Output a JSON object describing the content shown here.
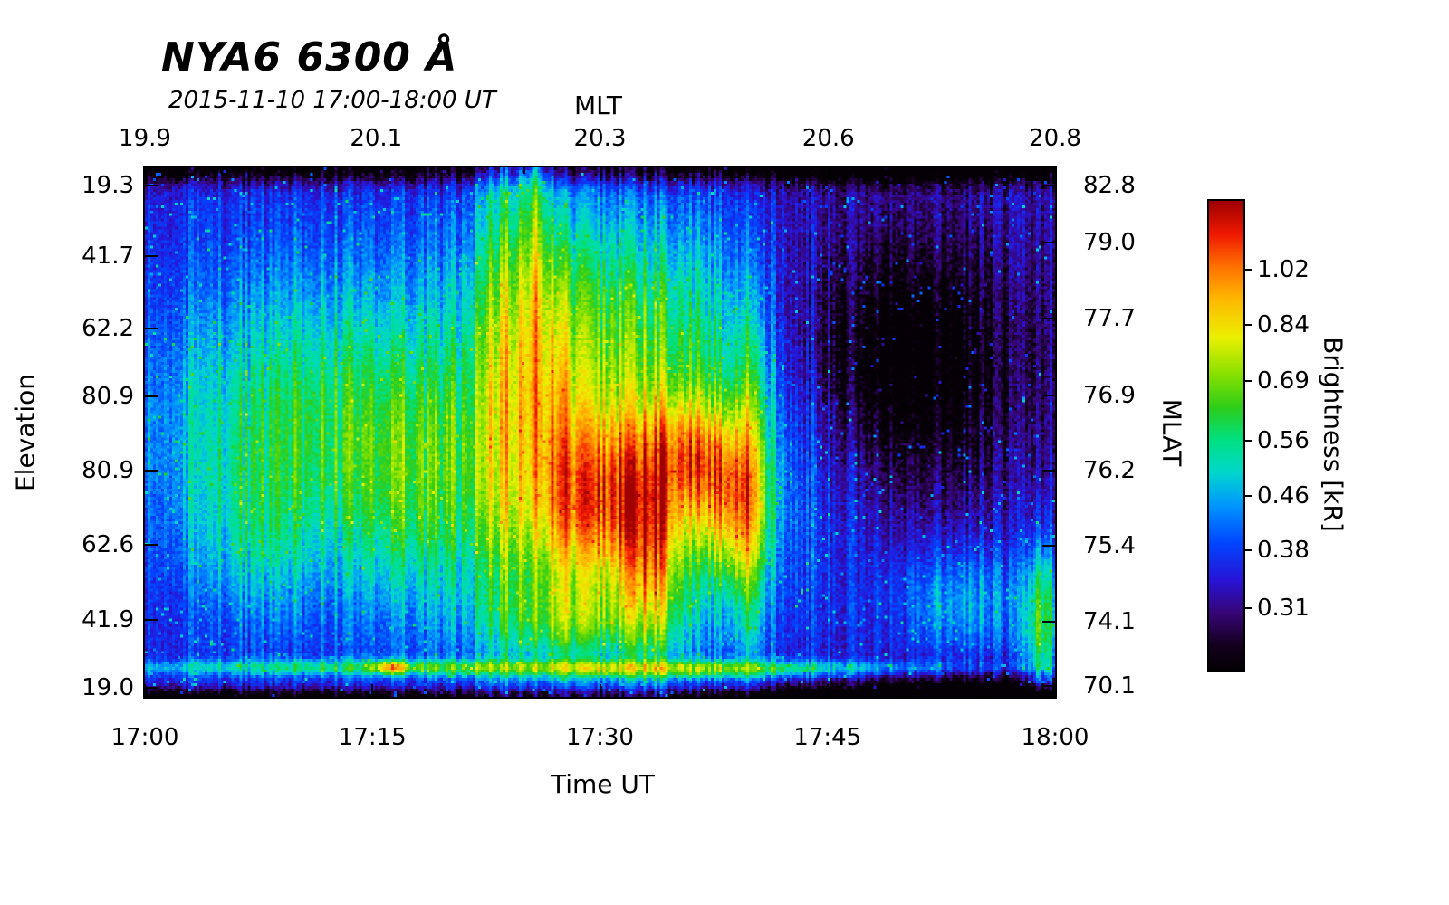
{
  "title": "NYA6 6300 Å",
  "subtitle": "2015-11-10 17:00-18:00 UT",
  "axes": {
    "top": {
      "label": "MLT",
      "ticks": [
        {
          "value": "19.9",
          "pos": 0.0
        },
        {
          "value": "20.1",
          "pos": 0.254
        },
        {
          "value": "20.3",
          "pos": 0.5
        },
        {
          "value": "20.6",
          "pos": 0.751
        },
        {
          "value": "20.8",
          "pos": 1.0
        }
      ]
    },
    "bottom": {
      "label": "Time UT",
      "ticks": [
        {
          "value": "17:00",
          "pos": 0.0
        },
        {
          "value": "17:15",
          "pos": 0.25
        },
        {
          "value": "17:30",
          "pos": 0.5
        },
        {
          "value": "17:45",
          "pos": 0.75
        },
        {
          "value": "18:00",
          "pos": 1.0
        }
      ]
    },
    "left": {
      "label": "Elevation",
      "ticks": [
        {
          "value": "19.3",
          "pos": 0.034
        },
        {
          "value": "41.7",
          "pos": 0.168
        },
        {
          "value": "62.2",
          "pos": 0.304
        },
        {
          "value": "80.9",
          "pos": 0.433
        },
        {
          "value": "80.9",
          "pos": 0.573
        },
        {
          "value": "62.6",
          "pos": 0.713
        },
        {
          "value": "41.9",
          "pos": 0.855
        },
        {
          "value": "19.0",
          "pos": 0.983
        }
      ]
    },
    "right": {
      "label": "MLAT",
      "ticks": [
        {
          "value": "82.8",
          "pos": 0.034
        },
        {
          "value": "79.0",
          "pos": 0.142
        },
        {
          "value": "77.7",
          "pos": 0.286
        },
        {
          "value": "76.9",
          "pos": 0.431
        },
        {
          "value": "76.2",
          "pos": 0.573
        },
        {
          "value": "75.4",
          "pos": 0.715
        },
        {
          "value": "74.1",
          "pos": 0.858
        },
        {
          "value": "70.1",
          "pos": 0.979
        }
      ]
    }
  },
  "colorbar": {
    "label": "Brightness [kR]",
    "ticks": [
      "1.02",
      "0.84",
      "0.69",
      "0.56",
      "0.46",
      "0.38",
      "0.31"
    ]
  },
  "chart_data": {
    "type": "heatmap",
    "title": "NYA6 6300 Å",
    "subtitle": "2015-11-10 17:00-18:00 UT",
    "xlabel": "Time UT",
    "x_range": [
      "17:00",
      "18:00"
    ],
    "top_axis_label": "MLT",
    "top_axis_ticks": [
      19.9,
      20.1,
      20.3,
      20.6,
      20.8
    ],
    "ylabel_left": "Elevation",
    "left_ticks": [
      19.3,
      41.7,
      62.2,
      80.9,
      80.9,
      62.6,
      41.9,
      19.0
    ],
    "ylabel_right": "MLAT",
    "right_ticks": [
      82.8,
      79.0,
      77.7,
      76.9,
      76.2,
      75.4,
      74.1,
      70.1
    ],
    "value_label": "Brightness [kR]",
    "value_ticks": [
      1.02,
      0.84,
      0.69,
      0.56,
      0.46,
      0.38,
      0.31
    ],
    "value_scale": "log",
    "value_range": [
      0.25,
      1.3
    ],
    "background_level": 0.345,
    "column_noise": 0.4,
    "pixel_noise": 0.05,
    "colormap_stops": [
      [
        0.0,
        5,
        0,
        5
      ],
      [
        0.05,
        20,
        0,
        30
      ],
      [
        0.12,
        55,
        5,
        120
      ],
      [
        0.19,
        40,
        20,
        215
      ],
      [
        0.27,
        0,
        70,
        255
      ],
      [
        0.35,
        0,
        150,
        255
      ],
      [
        0.42,
        0,
        215,
        205
      ],
      [
        0.49,
        0,
        225,
        130
      ],
      [
        0.56,
        45,
        205,
        25
      ],
      [
        0.63,
        135,
        225,
        0
      ],
      [
        0.71,
        235,
        240,
        0
      ],
      [
        0.79,
        255,
        185,
        0
      ],
      [
        0.86,
        255,
        115,
        0
      ],
      [
        0.93,
        240,
        25,
        0
      ],
      [
        1.0,
        160,
        0,
        0
      ]
    ],
    "features": [
      {
        "t": 0.19,
        "y": 0.5,
        "st": 0.11,
        "sy": 0.17,
        "a": 0.16
      },
      {
        "t": 0.22,
        "y": 0.5,
        "st": 0.17,
        "sy": 0.26,
        "a": 0.1
      },
      {
        "t": 0.3,
        "y": 0.62,
        "st": 0.05,
        "sy": 0.14,
        "a": 0.1
      },
      {
        "t": 0.12,
        "y": 0.7,
        "st": 0.04,
        "sy": 0.1,
        "a": 0.07
      },
      {
        "t": 0.395,
        "y": 0.4,
        "st": 0.018,
        "sy": 0.3,
        "a": 0.3
      },
      {
        "t": 0.43,
        "y": 0.28,
        "st": 0.01,
        "sy": 0.26,
        "a": 0.3
      },
      {
        "t": 0.455,
        "y": 0.5,
        "st": 0.012,
        "sy": 0.25,
        "a": 0.22
      },
      {
        "t": 0.54,
        "y": 0.55,
        "st": 0.11,
        "sy": 0.2,
        "a": 0.28
      },
      {
        "t": 0.52,
        "y": 0.25,
        "st": 0.09,
        "sy": 0.13,
        "a": 0.12
      },
      {
        "t": 0.52,
        "y": 0.5,
        "st": 0.17,
        "sy": 0.3,
        "a": 0.08
      },
      {
        "t": 0.505,
        "y": 0.63,
        "st": 0.045,
        "sy": 0.1,
        "a": 0.42
      },
      {
        "t": 0.555,
        "y": 0.72,
        "st": 0.022,
        "sy": 0.13,
        "a": 0.4
      },
      {
        "t": 0.6,
        "y": 0.55,
        "st": 0.03,
        "sy": 0.07,
        "a": 0.38
      },
      {
        "t": 0.645,
        "y": 0.63,
        "st": 0.022,
        "sy": 0.09,
        "a": 0.4
      },
      {
        "t": 0.665,
        "y": 0.6,
        "st": 0.012,
        "sy": 0.2,
        "a": 0.28
      },
      {
        "t": 0.47,
        "y": 0.85,
        "st": 0.06,
        "sy": 0.05,
        "a": 0.18
      },
      {
        "t": 0.9,
        "y": 0.82,
        "st": 0.05,
        "sy": 0.07,
        "a": 0.12
      },
      {
        "t": 0.985,
        "y": 0.86,
        "st": 0.012,
        "sy": 0.1,
        "a": 0.28
      },
      {
        "t": 0.4,
        "y": 0.945,
        "st": 0.3,
        "sy": 0.01,
        "a": 0.25
      },
      {
        "t": 0.27,
        "y": 0.945,
        "st": 0.012,
        "sy": 0.008,
        "a": 0.38
      },
      {
        "t": 0.6,
        "y": 0.95,
        "st": 0.12,
        "sy": 0.01,
        "a": 0.15
      },
      {
        "t": 0.82,
        "y": 0.38,
        "st": 0.095,
        "sy": 0.17,
        "a": -0.1
      },
      {
        "t": 0.85,
        "y": 0.35,
        "st": 0.15,
        "sy": 0.25,
        "a": -0.04
      },
      {
        "t": 0.5,
        "y": 0.0,
        "st": 9,
        "sy": 0.022,
        "a": -0.13
      },
      {
        "t": 0.5,
        "y": 1.0,
        "st": 9,
        "sy": 0.012,
        "a": -0.13
      },
      {
        "t": 0.95,
        "y": 1.0,
        "st": 0.15,
        "sy": 0.035,
        "a": -0.16
      }
    ]
  }
}
